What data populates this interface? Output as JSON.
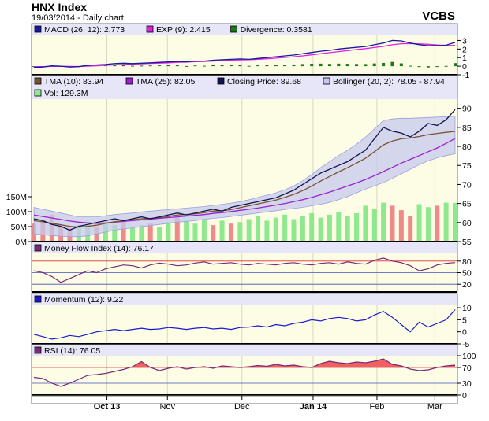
{
  "header": {
    "title": "HNX Index",
    "subtitle": "19/03/2014 - Daily chart",
    "brand": "VCBS"
  },
  "colors": {
    "panel_bg": "#fdfde6",
    "grid": "#d8d8c0",
    "legend_bg": "#e6e6f8",
    "divider": "#000000",
    "price": "#141450",
    "tma10": "#7a5230",
    "tma25": "#9a22d0",
    "bollinger_fill": "#c5c8ee",
    "vol_up": "#8ee88e",
    "vol_down": "#f08a8a",
    "macd": "#1a1aa0",
    "exp": "#e020e0",
    "divergence": "#1a7a1a",
    "mfi": "#7a2a7a",
    "momentum": "#1a1ad0",
    "rsi": "#7a2a7a",
    "rsi_fill": "#f06060",
    "level_red": "#e03030",
    "level_blue": "#4050c0"
  },
  "chart_data": [
    {
      "type": "line",
      "panel": "MACD",
      "legend": [
        "MACD (26, 12): 2.773",
        "EXP (9): 2.415",
        "Divergence: 0.3581"
      ],
      "yticks": [
        "3",
        "2",
        "1",
        "0",
        "-1"
      ],
      "ylim": [
        -1,
        3.5
      ],
      "series": [
        {
          "name": "MACD (26, 12)",
          "values": [
            -0.15,
            -0.1,
            0.05,
            0.0,
            -0.1,
            -0.05,
            0.1,
            0.15,
            0.2,
            0.3,
            0.35,
            0.3,
            0.35,
            0.4,
            0.45,
            0.5,
            0.55,
            0.5,
            0.6,
            0.6,
            0.7,
            0.75,
            0.8,
            0.85,
            0.8,
            0.9,
            1.0,
            1.1,
            1.2,
            1.3,
            1.45,
            1.6,
            1.75,
            1.85,
            2.0,
            2.1,
            2.2,
            2.3,
            2.5,
            2.7,
            3.0,
            2.95,
            2.7,
            2.5,
            2.4,
            2.4,
            2.45,
            2.773
          ]
        },
        {
          "name": "EXP (9)",
          "values": [
            -0.05,
            -0.05,
            -0.02,
            -0.02,
            -0.03,
            -0.04,
            0.0,
            0.05,
            0.1,
            0.15,
            0.2,
            0.25,
            0.28,
            0.32,
            0.36,
            0.4,
            0.45,
            0.48,
            0.52,
            0.55,
            0.6,
            0.65,
            0.7,
            0.74,
            0.76,
            0.8,
            0.86,
            0.94,
            1.02,
            1.1,
            1.2,
            1.32,
            1.45,
            1.58,
            1.7,
            1.82,
            1.94,
            2.05,
            2.18,
            2.32,
            2.5,
            2.62,
            2.65,
            2.6,
            2.55,
            2.48,
            2.42,
            2.415
          ]
        },
        {
          "name": "Divergence",
          "values": [
            -0.1,
            -0.05,
            0.07,
            0.02,
            -0.07,
            -0.01,
            0.1,
            0.1,
            0.1,
            0.15,
            0.15,
            0.05,
            0.07,
            0.08,
            0.09,
            0.1,
            0.1,
            0.02,
            0.08,
            0.05,
            0.1,
            0.1,
            0.1,
            0.11,
            0.04,
            0.1,
            0.14,
            0.16,
            0.18,
            0.2,
            0.25,
            0.28,
            0.3,
            0.27,
            0.3,
            0.28,
            0.26,
            0.25,
            0.32,
            0.38,
            0.5,
            0.33,
            0.05,
            -0.1,
            -0.15,
            -0.08,
            0.03,
            0.3581
          ]
        }
      ]
    },
    {
      "type": "line",
      "panel": "Price",
      "legend": [
        "TMA (10): 83.94",
        "TMA (25): 82.05",
        "Closing Price: 89.68",
        "Bollinger (20, 2): 78.05 - 87.94",
        "Vol: 129.3M"
      ],
      "yticks": [
        "90",
        "85",
        "80",
        "75",
        "70",
        "65",
        "60",
        "55"
      ],
      "ylim": [
        55,
        92
      ],
      "series": [
        {
          "name": "Closing Price",
          "values": [
            61,
            60.5,
            59.5,
            59,
            58,
            59,
            59.5,
            60,
            60.5,
            61,
            60.5,
            61,
            61.5,
            61,
            61.5,
            62,
            62.5,
            62,
            62.5,
            63,
            63.5,
            63,
            64,
            64.5,
            65,
            65.5,
            66,
            66.5,
            67.5,
            68.5,
            70,
            71.5,
            73,
            74,
            75,
            76,
            77.5,
            79,
            82,
            85,
            84,
            83.5,
            82.5,
            84,
            86,
            85.5,
            87,
            89.68
          ]
        },
        {
          "name": "TMA (10)",
          "values": [
            60.5,
            60.2,
            59.8,
            59.4,
            59,
            58.8,
            59,
            59.3,
            59.8,
            60.2,
            60.5,
            60.7,
            61,
            61.1,
            61.3,
            61.6,
            62,
            62.1,
            62.3,
            62.6,
            63,
            63.1,
            63.4,
            63.9,
            64.4,
            64.9,
            65.4,
            65.9,
            66.6,
            67.4,
            68.4,
            69.6,
            70.9,
            72.1,
            73.3,
            74.4,
            75.6,
            76.9,
            78.6,
            80.4,
            81.4,
            82,
            82.2,
            82.6,
            83.1,
            83.4,
            83.7,
            83.94
          ]
        },
        {
          "name": "TMA (25)",
          "values": [
            62,
            61.6,
            61.2,
            60.8,
            60.4,
            60.1,
            59.9,
            59.8,
            59.9,
            60.1,
            60.3,
            60.5,
            60.7,
            60.9,
            61.1,
            61.3,
            61.5,
            61.7,
            61.9,
            62.1,
            62.4,
            62.6,
            62.9,
            63.2,
            63.5,
            63.8,
            64.2,
            64.6,
            65,
            65.5,
            66,
            66.6,
            67.3,
            68,
            68.8,
            69.6,
            70.4,
            71.3,
            72.3,
            73.4,
            74.5,
            75.6,
            76.6,
            77.6,
            78.6,
            79.6,
            80.8,
            82.05
          ]
        },
        {
          "name": "Bollinger Upper",
          "values": [
            64,
            63.5,
            63,
            62.5,
            62,
            61.5,
            61.5,
            61.5,
            61.8,
            62.1,
            62.3,
            62.5,
            62.8,
            63,
            63.2,
            63.4,
            63.6,
            63.8,
            64,
            64.2,
            64.5,
            64.8,
            65.1,
            65.5,
            66,
            66.6,
            67.2,
            67.8,
            68.6,
            69.6,
            71,
            72.6,
            74.4,
            76,
            77.6,
            79,
            80.6,
            82.4,
            84.6,
            86.8,
            87.2,
            87.4,
            87.4,
            87.5,
            87.6,
            87.7,
            87.8,
            87.94
          ]
        },
        {
          "name": "Bollinger Lower",
          "values": [
            57,
            56.8,
            56.6,
            56.4,
            56.3,
            56.3,
            56.5,
            57,
            57.5,
            58,
            58.3,
            58.6,
            58.9,
            59.2,
            59.5,
            59.8,
            60.1,
            60.3,
            60.5,
            60.8,
            61.1,
            61.3,
            61.6,
            61.9,
            62.2,
            62.5,
            62.8,
            63.1,
            63.4,
            63.7,
            64,
            64.4,
            64.8,
            65.3,
            66,
            66.8,
            67.8,
            68.8,
            69.6,
            70.5,
            71.6,
            72.8,
            74,
            75.2,
            76.2,
            77,
            77.6,
            78.05
          ]
        }
      ]
    },
    {
      "type": "bar",
      "panel": "Volume",
      "yticks": [
        "150M",
        "100M",
        "50M",
        "0M"
      ],
      "ylim": [
        0,
        150
      ],
      "series": [
        {
          "name": "Vol",
          "values": [
            60,
            70,
            90,
            50,
            45,
            55,
            65,
            50,
            60,
            55,
            70,
            45,
            55,
            60,
            50,
            65,
            80,
            70,
            60,
            75,
            55,
            70,
            60,
            65,
            75,
            85,
            70,
            80,
            90,
            75,
            85,
            95,
            80,
            90,
            100,
            85,
            95,
            120,
            110,
            130,
            120,
            105,
            85,
            125,
            115,
            120,
            130,
            129.3
          ],
          "up": [
            0,
            0,
            0,
            0,
            0,
            1,
            1,
            0,
            1,
            1,
            0,
            1,
            1,
            0,
            1,
            1,
            0,
            1,
            1,
            1,
            0,
            1,
            0,
            1,
            1,
            1,
            1,
            1,
            1,
            1,
            1,
            1,
            1,
            1,
            1,
            1,
            1,
            1,
            1,
            1,
            0,
            0,
            0,
            1,
            1,
            0,
            1,
            1
          ]
        }
      ]
    },
    {
      "type": "line",
      "panel": "MFI",
      "legend": [
        "Money Flow Index (14): 76.17"
      ],
      "yticks": [
        "80",
        "50",
        "20"
      ],
      "ylim": [
        0,
        100
      ],
      "levels": [
        80,
        50,
        20
      ],
      "series": [
        {
          "name": "Money Flow Index (14)",
          "values": [
            55,
            50,
            40,
            25,
            35,
            45,
            55,
            50,
            60,
            65,
            70,
            68,
            62,
            70,
            75,
            72,
            68,
            70,
            75,
            78,
            72,
            74,
            76,
            72,
            70,
            74,
            72,
            70,
            74,
            76,
            72,
            70,
            74,
            76,
            72,
            78,
            74,
            72,
            82,
            88,
            80,
            76,
            68,
            55,
            60,
            70,
            74,
            76.17
          ]
        }
      ]
    },
    {
      "type": "line",
      "panel": "Momentum",
      "legend": [
        "Momentum (12): 9.22"
      ],
      "yticks": [
        "10",
        "5",
        "0",
        "-5"
      ],
      "ylim": [
        -5,
        11
      ],
      "series": [
        {
          "name": "Momentum (12)",
          "values": [
            -1,
            -2,
            -3,
            -2.5,
            -1.5,
            -2,
            -1,
            0,
            0.5,
            1,
            0.5,
            1,
            1.5,
            1,
            1.2,
            1.8,
            1.5,
            1,
            1.5,
            1.8,
            1.2,
            1.5,
            1,
            1.8,
            2,
            2.5,
            2,
            3,
            2.5,
            3.5,
            4,
            5,
            4.5,
            5.5,
            6,
            5.5,
            4.5,
            5,
            7,
            8.5,
            6,
            3,
            0,
            4,
            2,
            3.5,
            5,
            9.22
          ]
        }
      ]
    },
    {
      "type": "area",
      "panel": "RSI",
      "legend": [
        "RSI (14): 76.05"
      ],
      "yticks": [
        "100",
        "70",
        "30",
        "0"
      ],
      "ylim": [
        0,
        100
      ],
      "levels": [
        70,
        30
      ],
      "series": [
        {
          "name": "RSI (14)",
          "values": [
            45,
            42,
            30,
            22,
            30,
            40,
            50,
            52,
            55,
            60,
            65,
            72,
            85,
            70,
            62,
            68,
            72,
            66,
            70,
            72,
            68,
            74,
            72,
            70,
            72,
            75,
            73,
            78,
            74,
            76,
            72,
            70,
            80,
            86,
            82,
            80,
            84,
            82,
            86,
            92,
            78,
            74,
            66,
            62,
            64,
            70,
            74,
            76.05
          ]
        }
      ]
    }
  ],
  "x_axis": {
    "labels": [
      "Oct 13",
      "Nov",
      "Dec",
      "Jan 14",
      "Feb",
      "Mar"
    ],
    "bold": [
      true,
      false,
      false,
      true,
      false,
      false
    ],
    "positions": [
      0.177,
      0.319,
      0.494,
      0.661,
      0.811,
      0.947
    ]
  }
}
